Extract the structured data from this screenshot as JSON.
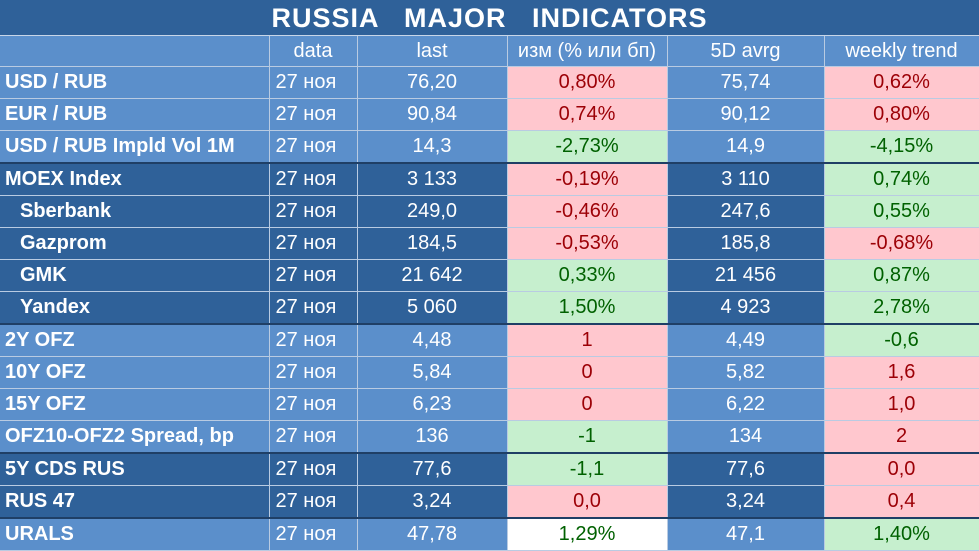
{
  "title": "RUSSIA   MAJOR   INDICATORS",
  "headers": [
    "",
    "data",
    "last",
    "изм (% или бп)",
    "5D avrg",
    "weekly trend"
  ],
  "rows": [
    {
      "name": "USD / RUB",
      "date": "27 ноя",
      "last": "76,20",
      "chg": "0,80%",
      "chg_dir": "red",
      "avg": "75,74",
      "trend": "0,62%",
      "trend_dir": "red",
      "band": "light",
      "sub": false
    },
    {
      "name": "EUR / RUB",
      "date": "27 ноя",
      "last": "90,84",
      "chg": "0,74%",
      "chg_dir": "red",
      "avg": "90,12",
      "trend": "0,80%",
      "trend_dir": "red",
      "band": "light",
      "sub": false
    },
    {
      "name": "USD / RUB Impld Vol 1M",
      "date": "27 ноя",
      "last": "14,3",
      "chg": "-2,73%",
      "chg_dir": "green",
      "avg": "14,9",
      "trend": "-4,15%",
      "trend_dir": "green",
      "band": "light",
      "sub": false
    },
    {
      "name": "MOEX Index",
      "date": "27 ноя",
      "last": "3 133",
      "chg": "-0,19%",
      "chg_dir": "red",
      "avg": "3 110",
      "trend": "0,74%",
      "trend_dir": "green",
      "band": "dark",
      "sub": false,
      "sep": true
    },
    {
      "name": "Sberbank",
      "date": "27 ноя",
      "last": "249,0",
      "chg": "-0,46%",
      "chg_dir": "red",
      "avg": "247,6",
      "trend": "0,55%",
      "trend_dir": "green",
      "band": "dark",
      "sub": true
    },
    {
      "name": "Gazprom",
      "date": "27 ноя",
      "last": "184,5",
      "chg": "-0,53%",
      "chg_dir": "red",
      "avg": "185,8",
      "trend": "-0,68%",
      "trend_dir": "red",
      "band": "dark",
      "sub": true
    },
    {
      "name": "GMK",
      "date": "27 ноя",
      "last": "21 642",
      "chg": "0,33%",
      "chg_dir": "green",
      "avg": "21 456",
      "trend": "0,87%",
      "trend_dir": "green",
      "band": "dark",
      "sub": true
    },
    {
      "name": "Yandex",
      "date": "27 ноя",
      "last": "5 060",
      "chg": "1,50%",
      "chg_dir": "green",
      "avg": "4 923",
      "trend": "2,78%",
      "trend_dir": "green",
      "band": "dark",
      "sub": true
    },
    {
      "name": "2Y OFZ",
      "date": "27 ноя",
      "last": "4,48",
      "chg": "1",
      "chg_dir": "red",
      "avg": "4,49",
      "trend": "-0,6",
      "trend_dir": "green",
      "band": "light",
      "sub": false,
      "sep": true
    },
    {
      "name": "10Y OFZ",
      "date": "27 ноя",
      "last": "5,84",
      "chg": "0",
      "chg_dir": "red",
      "avg": "5,82",
      "trend": "1,6",
      "trend_dir": "red",
      "band": "light",
      "sub": false
    },
    {
      "name": "15Y OFZ",
      "date": "27 ноя",
      "last": "6,23",
      "chg": "0",
      "chg_dir": "red",
      "avg": "6,22",
      "trend": "1,0",
      "trend_dir": "red",
      "band": "light",
      "sub": false
    },
    {
      "name": "OFZ10-OFZ2 Spread, bp",
      "date": "27 ноя",
      "last": "136",
      "chg": "-1",
      "chg_dir": "green",
      "avg": "134",
      "trend": "2",
      "trend_dir": "red",
      "band": "light",
      "sub": false
    },
    {
      "name": "5Y CDS RUS",
      "date": "27 ноя",
      "last": "77,6",
      "chg": "-1,1",
      "chg_dir": "green",
      "avg": "77,6",
      "trend": "0,0",
      "trend_dir": "red",
      "band": "dark",
      "sub": false,
      "sep": true
    },
    {
      "name": "RUS 47",
      "date": "27 ноя",
      "last": "3,24",
      "chg": "0,0",
      "chg_dir": "red",
      "avg": "3,24",
      "trend": "0,4",
      "trend_dir": "red",
      "band": "dark",
      "sub": false
    },
    {
      "name": "URALS",
      "date": "27 ноя",
      "last": "47,78",
      "chg": "1,29%",
      "chg_dir": "white",
      "avg": "47,1",
      "trend": "1,40%",
      "trend_dir": "green",
      "band": "light",
      "sub": false,
      "sep": true
    }
  ],
  "colors": {
    "dark_band": "#2f6199",
    "light_band": "#5b8fcb",
    "neg_fill": "#ffc7ce",
    "neg_text": "#9c0006",
    "pos_fill": "#c6efce",
    "pos_text": "#006100"
  }
}
